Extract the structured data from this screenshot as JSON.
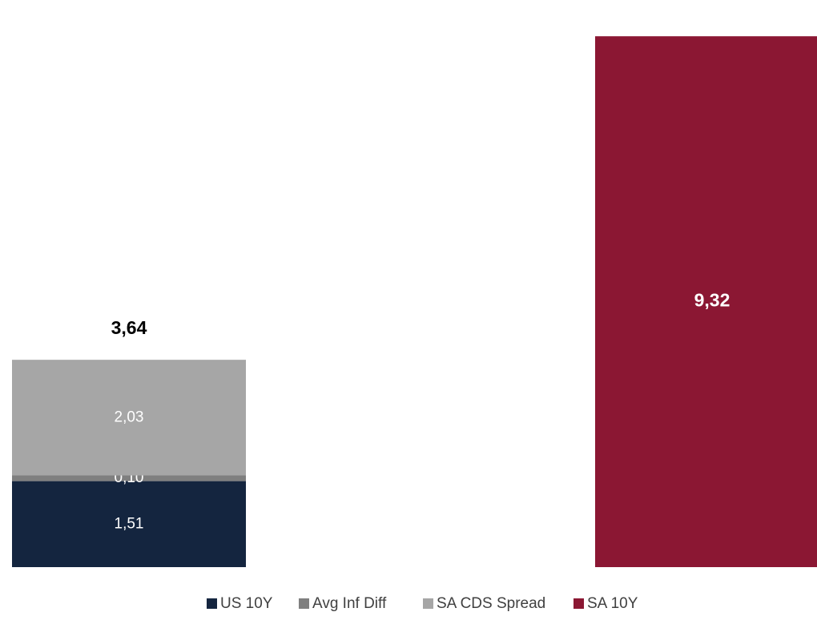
{
  "chart_data": {
    "type": "bar",
    "stacked": true,
    "categories": [
      "",
      ""
    ],
    "series": [
      {
        "name": "US 10Y",
        "color": "#14253f",
        "values": [
          1.51,
          null
        ],
        "labels": [
          "1,51",
          ""
        ]
      },
      {
        "name": "Avg Inf Diff",
        "color": "#7f7f7f",
        "values": [
          0.1,
          null
        ],
        "labels": [
          "0,10",
          ""
        ]
      },
      {
        "name": "SA CDS Spread",
        "color": "#a6a6a6",
        "values": [
          2.03,
          null
        ],
        "labels": [
          "2,03",
          ""
        ]
      },
      {
        "name": "SA 10Y",
        "color": "#8b1733",
        "values": [
          null,
          9.32
        ],
        "labels": [
          "",
          "9,32"
        ]
      }
    ],
    "totals": [
      3.64,
      9.32
    ],
    "total_labels": [
      "3,64",
      ""
    ],
    "ylim": [
      0,
      9.9
    ],
    "grid": false,
    "legend_position": "bottom"
  }
}
